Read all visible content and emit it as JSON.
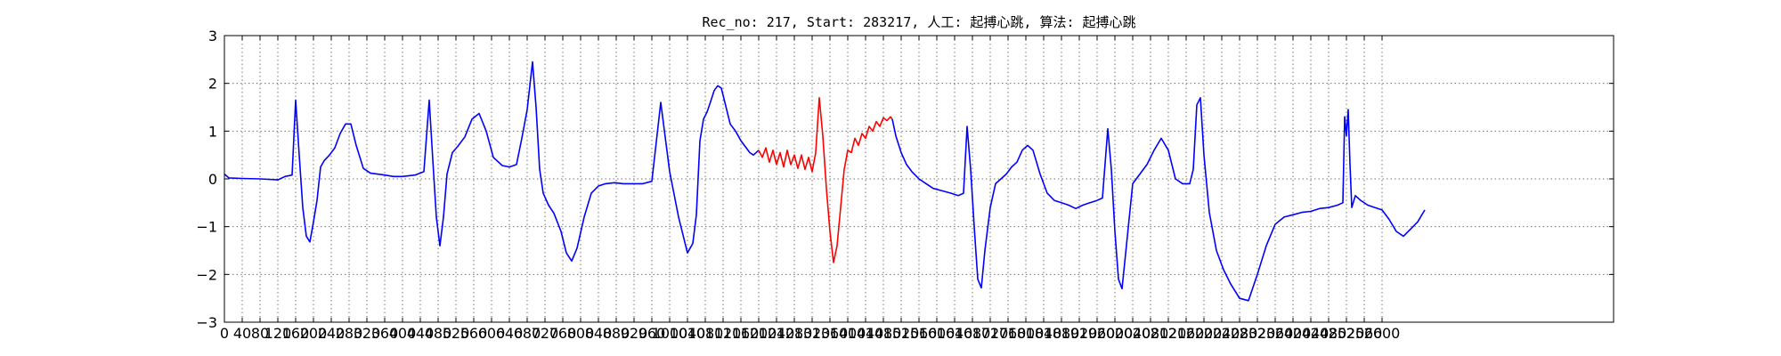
{
  "chart_data": {
    "type": "line",
    "title": "Rec_no: 217, Start: 283217, 人工: 起搏心跳, 算法: 起搏心跳",
    "xlabel": "",
    "ylabel": "",
    "xlim": [
      0,
      1560
    ],
    "ylim": [
      -3,
      3
    ],
    "grid": true,
    "x_tick_step": 20,
    "x_tick_labels": [
      "0",
      "40",
      "80",
      "120",
      "160",
      "200",
      "240",
      "280",
      "320",
      "360",
      "400",
      "440",
      "480",
      "520",
      "560",
      "600",
      "640",
      "680",
      "720",
      "760",
      "800",
      "840",
      "880",
      "920",
      "960",
      "1000",
      "1040",
      "1080",
      "1120",
      "1160",
      "1200",
      "1240",
      "1280",
      "1320",
      "1360",
      "1400",
      "1440",
      "1480",
      "1520",
      "1560",
      "1600",
      "1640",
      "1680",
      "1720",
      "1760",
      "1800",
      "1840",
      "1880",
      "1920",
      "1960",
      "2000",
      "2040",
      "2080",
      "2120",
      "2160",
      "2200",
      "2240",
      "2280",
      "2320",
      "2360",
      "2400",
      "2440",
      "2480",
      "2520",
      "2560",
      "2600"
    ],
    "y_ticks": [
      -3,
      -2,
      -1,
      0,
      1,
      2,
      3
    ],
    "y_tick_labels": [
      "−3",
      "−2",
      "−1",
      "0",
      "1",
      "2",
      "3"
    ],
    "series": [
      {
        "color": "#0000ff",
        "x": [
          0,
          5,
          20,
          40,
          60,
          68,
          76,
          80,
          84,
          88,
          92,
          96,
          100,
          104,
          108,
          112,
          118,
          124,
          130,
          136,
          142,
          148,
          156,
          164,
          172,
          180,
          190,
          200,
          214,
          224,
          230,
          234,
          238,
          242,
          246,
          250,
          256,
          262,
          270,
          278,
          286,
          294,
          302,
          312,
          320,
          328,
          334,
          340,
          346,
          350,
          354,
          358,
          364,
          370,
          378,
          384,
          390,
          396,
          404,
          412,
          420,
          428,
          438,
          448,
          458,
          470,
          480,
          490,
          500,
          510,
          520,
          526,
          530,
          534,
          538,
          542,
          546,
          550,
          554,
          558,
          562,
          568,
          574,
          580,
          586,
          590,
          594,
          600
        ],
        "y": [
          0.1,
          0.02,
          0.01,
          0.0,
          -0.02,
          0.05,
          0.08,
          1.65,
          0.5,
          -0.6,
          -1.2,
          -1.32,
          -0.9,
          -0.45,
          0.25,
          0.38,
          0.5,
          0.65,
          0.95,
          1.15,
          1.15,
          0.7,
          0.22,
          0.12,
          0.1,
          0.08,
          0.05,
          0.05,
          0.08,
          0.15,
          1.65,
          0.4,
          -0.8,
          -1.4,
          -0.8,
          0.1,
          0.55,
          0.68,
          0.88,
          1.25,
          1.37,
          1.0,
          0.45,
          0.28,
          0.25,
          0.3,
          0.85,
          1.45,
          2.45,
          1.5,
          0.2,
          -0.3,
          -0.55,
          -0.72,
          -1.1,
          -1.55,
          -1.72,
          -1.45,
          -0.8,
          -0.3,
          -0.15,
          -0.1,
          -0.08,
          -0.1,
          -0.1,
          -0.1,
          -0.05,
          1.6,
          0.15,
          -0.8,
          -1.55,
          -1.35,
          -0.75,
          0.8,
          1.25,
          1.4,
          1.62,
          1.85,
          1.95,
          1.9,
          1.6,
          1.15,
          1.0,
          0.8,
          0.65,
          0.55,
          0.5,
          0.6
        ]
      },
      {
        "color": "#ff0000",
        "x": [
          600,
          604,
          608,
          612,
          616,
          620,
          624,
          628,
          632,
          636,
          640,
          644,
          648,
          652,
          656,
          660,
          664,
          668,
          672,
          676,
          680,
          684,
          688,
          692,
          696,
          700,
          704,
          708,
          712,
          716,
          720,
          724,
          728,
          732,
          736,
          740,
          744,
          748,
          750
        ],
        "y": [
          0.6,
          0.45,
          0.65,
          0.35,
          0.6,
          0.3,
          0.55,
          0.25,
          0.6,
          0.3,
          0.5,
          0.22,
          0.5,
          0.2,
          0.45,
          0.15,
          0.55,
          1.7,
          0.9,
          -0.2,
          -1.1,
          -1.75,
          -1.4,
          -0.6,
          0.2,
          0.6,
          0.55,
          0.85,
          0.7,
          0.95,
          0.85,
          1.1,
          1.0,
          1.2,
          1.1,
          1.28,
          1.22,
          1.3,
          1.25
        ]
      },
      {
        "color": "#0000ff",
        "x": [
          750,
          754,
          760,
          766,
          772,
          780,
          788,
          796,
          806,
          816,
          824,
          830,
          834,
          838,
          842,
          846,
          850,
          854,
          860,
          866,
          872,
          878,
          884,
          890,
          896,
          902,
          908,
          916,
          924,
          932,
          940,
          948,
          956,
          964,
          972,
          980,
          986,
          992,
          996,
          1000,
          1004,
          1008,
          1014,
          1020,
          1028,
          1036,
          1044,
          1052,
          1060,
          1068,
          1076,
          1084,
          1088,
          1092,
          1096,
          1100,
          1106,
          1114,
          1122,
          1130,
          1140,
          1150,
          1160,
          1170,
          1180,
          1190,
          1200,
          1210,
          1220,
          1230,
          1240,
          1250,
          1256,
          1258,
          1260,
          1262,
          1264,
          1266,
          1270,
          1276,
          1284,
          1292,
          1300,
          1308,
          1316,
          1324,
          1332,
          1340,
          1348
        ],
        "y": [
          1.25,
          0.9,
          0.55,
          0.3,
          0.15,
          0.0,
          -0.1,
          -0.2,
          -0.25,
          -0.3,
          -0.35,
          -0.3,
          1.1,
          0.2,
          -1.0,
          -2.1,
          -2.28,
          -1.5,
          -0.6,
          -0.1,
          0.0,
          0.1,
          0.25,
          0.35,
          0.6,
          0.7,
          0.6,
          0.1,
          -0.3,
          -0.45,
          -0.5,
          -0.55,
          -0.62,
          -0.55,
          -0.5,
          -0.45,
          -0.4,
          1.05,
          0.2,
          -1.1,
          -2.1,
          -2.3,
          -1.2,
          -0.1,
          0.1,
          0.3,
          0.6,
          0.85,
          0.6,
          0.0,
          -0.1,
          -0.1,
          0.2,
          1.55,
          1.7,
          0.5,
          -0.7,
          -1.5,
          -1.9,
          -2.2,
          -2.5,
          -2.55,
          -2.0,
          -1.4,
          -0.95,
          -0.8,
          -0.75,
          -0.7,
          -0.68,
          -0.62,
          -0.6,
          -0.55,
          -0.5,
          1.3,
          0.9,
          1.45,
          0.3,
          -0.6,
          -0.35,
          -0.45,
          -0.55,
          -0.6,
          -0.65,
          -0.85,
          -1.1,
          -1.2,
          -1.05,
          -0.9,
          -0.65
        ]
      }
    ]
  }
}
